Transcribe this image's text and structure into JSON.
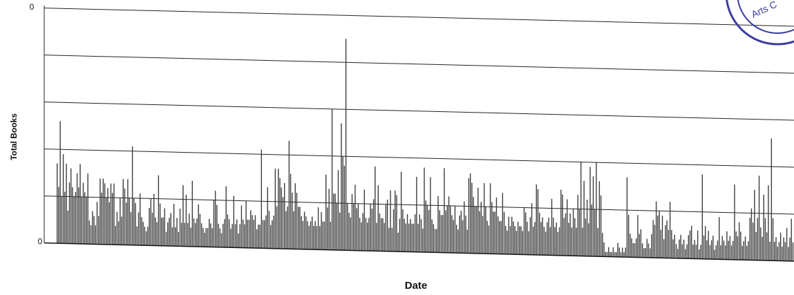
{
  "chart_data": {
    "type": "bar",
    "title": "",
    "xlabel": "Date",
    "ylabel": "Total Books",
    "y_tick_labels": [
      "0",
      "0"
    ],
    "ylim": [
      0,
      5
    ],
    "grid": true,
    "legend": "none",
    "series": [
      {
        "values": [
          1.7,
          1.2,
          2.6,
          1.0,
          1.9,
          1.1,
          1.7,
          0.7,
          1.3,
          1.6,
          1.2,
          1.0,
          1.1,
          1.5,
          1.2,
          1.7,
          1.0,
          1.3,
          1.1,
          1.0,
          1.5,
          0.5,
          0.4,
          0.7,
          0.6,
          0.4,
          0.9,
          0.6,
          1.4,
          1.1,
          1.4,
          1.3,
          1.0,
          1.2,
          0.9,
          1.3,
          1.1,
          1.3,
          0.4,
          0.7,
          0.5,
          1.0,
          0.6,
          1.4,
          1.2,
          0.9,
          1.4,
          1.0,
          0.7,
          2.1,
          1.0,
          0.9,
          0.4,
          0.7,
          1.1,
          0.6,
          0.5,
          0.4,
          0.3,
          0.4,
          0.8,
          1.0,
          0.7,
          1.1,
          0.6,
          0.5,
          1.5,
          0.9,
          0.6,
          0.6,
          0.8,
          0.3,
          0.5,
          0.6,
          0.7,
          0.4,
          0.9,
          0.4,
          0.6,
          0.3,
          0.8,
          0.5,
          1.3,
          0.5,
          1.1,
          0.5,
          0.7,
          0.4,
          1.4,
          0.6,
          0.5,
          0.6,
          0.9,
          0.7,
          0.5,
          0.4,
          0.3,
          0.4,
          0.4,
          0.6,
          0.5,
          0.4,
          1.0,
          1.2,
          0.9,
          0.5,
          0.4,
          0.3,
          0.5,
          0.6,
          1.3,
          0.7,
          0.6,
          0.4,
          0.5,
          1.1,
          0.5,
          0.6,
          0.3,
          0.5,
          0.9,
          0.6,
          0.5,
          1.0,
          0.6,
          0.6,
          0.8,
          0.7,
          0.6,
          0.7,
          0.4,
          0.5,
          0.5,
          2.1,
          0.6,
          0.6,
          0.7,
          1.3,
          0.8,
          0.5,
          0.6,
          0.7,
          1.7,
          0.9,
          1.7,
          1.5,
          1.3,
          1.1,
          1.4,
          0.8,
          0.9,
          2.3,
          1.6,
          1.2,
          0.8,
          1.4,
          1.2,
          0.9,
          0.9,
          0.7,
          0.6,
          0.8,
          0.7,
          0.6,
          0.5,
          0.6,
          0.7,
          0.5,
          0.6,
          0.5,
          0.9,
          0.5,
          0.8,
          0.6,
          0.6,
          1.6,
          0.9,
          1.3,
          0.6,
          3.0,
          1.2,
          1.2,
          1.0,
          1.7,
          0.8,
          2.7,
          2.0,
          1.8,
          4.5,
          1.0,
          0.8,
          0.7,
          1.2,
          1.0,
          1.4,
          0.9,
          1.0,
          0.7,
          0.6,
          0.8,
          1.3,
          0.7,
          0.6,
          0.7,
          1.0,
          0.9,
          1.1,
          1.8,
          0.6,
          1.4,
          0.8,
          0.7,
          0.7,
          0.6,
          1.0,
          1.1,
          0.5,
          1.3,
          0.5,
          0.9,
          1.3,
          1.2,
          0.4,
          0.7,
          1.7,
          0.9,
          0.7,
          0.6,
          0.8,
          0.6,
          0.7,
          0.6,
          0.6,
          0.8,
          1.6,
          0.6,
          0.8,
          0.7,
          0.5,
          1.8,
          1.1,
          1.0,
          0.9,
          1.6,
          0.7,
          0.6,
          0.5,
          0.5,
          1.2,
          0.9,
          0.8,
          0.8,
          1.8,
          0.9,
          1.0,
          1.2,
          1.0,
          0.8,
          0.7,
          1.0,
          0.6,
          0.5,
          0.8,
          0.9,
          0.7,
          1.1,
          0.8,
          0.5,
          1.6,
          1.7,
          1.5,
          1.2,
          1.0,
          1.0,
          1.4,
          0.9,
          1.1,
          0.8,
          1.5,
          1.0,
          0.7,
          0.6,
          1.5,
          1.1,
          0.9,
          0.9,
          1.2,
          0.8,
          0.7,
          0.7,
          1.3,
          0.9,
          0.6,
          0.5,
          0.8,
          0.6,
          0.8,
          0.7,
          0.6,
          0.5,
          0.7,
          0.6,
          0.6,
          0.5,
          1.0,
          0.9,
          0.7,
          0.5,
          0.8,
          1.1,
          0.6,
          0.7,
          1.5,
          1.4,
          0.9,
          0.7,
          0.8,
          0.6,
          0.5,
          0.7,
          0.8,
          0.6,
          1.2,
          0.8,
          0.6,
          0.7,
          0.5,
          0.6,
          1.4,
          1.3,
          0.8,
          0.9,
          1.2,
          0.7,
          0.9,
          0.6,
          1.0,
          0.8,
          0.6,
          1.3,
          1.0,
          2.0,
          0.6,
          1.6,
          0.8,
          1.2,
          0.7,
          1.9,
          1.1,
          1.7,
          1.0,
          2.0,
          0.6,
          1.6,
          1.3,
          0.5,
          0.3,
          0.1,
          0.1,
          0.2,
          0.1,
          0.1,
          0.2,
          0.1,
          0.1,
          0.3,
          0.2,
          0.1,
          0.2,
          0.1,
          0.2,
          1.7,
          0.9,
          0.5,
          0.4,
          0.3,
          0.3,
          0.4,
          0.9,
          0.5,
          0.6,
          0.3,
          0.2,
          0.2,
          0.4,
          0.3,
          0.2,
          0.5,
          0.8,
          0.7,
          1.2,
          0.9,
          1.0,
          0.6,
          0.9,
          0.4,
          0.7,
          0.8,
          0.6,
          1.2,
          0.6,
          0.4,
          0.5,
          0.3,
          0.2,
          0.4,
          0.5,
          0.3,
          0.4,
          0.2,
          0.3,
          0.5,
          0.6,
          0.7,
          0.3,
          0.4,
          0.3,
          0.6,
          0.2,
          0.3,
          1.8,
          0.5,
          0.7,
          0.4,
          0.6,
          0.3,
          0.4,
          0.5,
          0.2,
          0.3,
          0.4,
          0.9,
          0.3,
          0.5,
          0.4,
          0.3,
          0.6,
          0.4,
          0.5,
          0.3,
          0.4,
          1.6,
          0.6,
          0.5,
          0.8,
          0.6,
          0.3,
          0.4,
          0.5,
          0.3,
          0.4,
          0.9,
          1.1,
          0.8,
          1.5,
          0.6,
          0.9,
          1.8,
          0.7,
          0.5,
          1.4,
          0.9,
          0.6,
          1.6,
          0.4,
          2.6,
          0.9,
          0.4,
          0.5,
          0.3,
          0.4,
          0.6,
          0.3,
          0.5,
          0.4,
          0.7,
          0.3,
          0.5,
          0.9,
          0.4
        ]
      }
    ]
  },
  "decorations": {
    "stamp_lettering": "Arts C"
  }
}
